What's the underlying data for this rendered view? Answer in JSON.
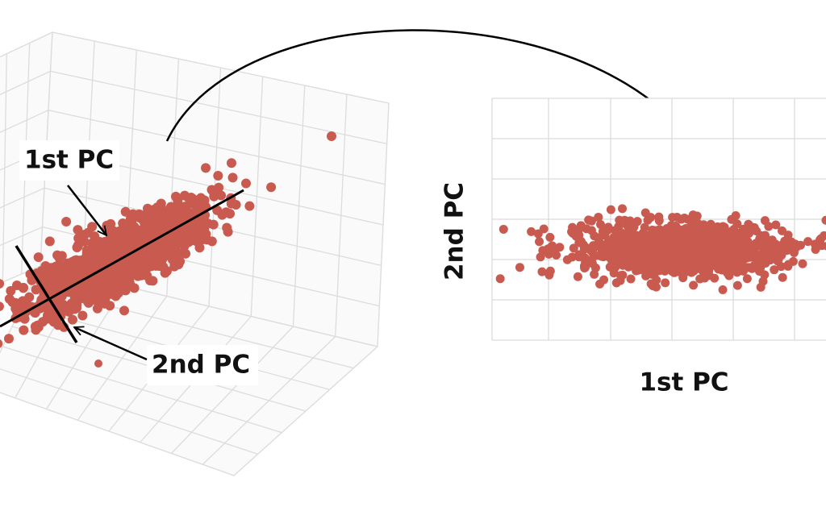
{
  "left_plot": {
    "first_pc_label": "1st PC",
    "second_pc_label": "2nd PC"
  },
  "right_plot": {
    "y_axis_label": "2nd PC",
    "x_axis_label": "1st PC"
  }
}
